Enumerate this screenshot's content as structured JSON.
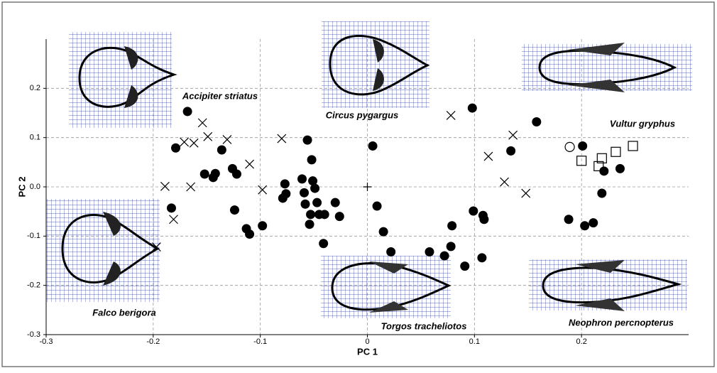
{
  "chart_data": {
    "type": "scatter",
    "x_label": "PC 1",
    "y_label": "PC 2",
    "xlim": [
      -0.3,
      0.3
    ],
    "ylim": [
      -0.3,
      0.3
    ],
    "xticks": [
      -0.3,
      -0.2,
      -0.1,
      0,
      0.1,
      0.2
    ],
    "yticks": [
      -0.3,
      -0.2,
      -0.1,
      {
        "value": 0,
        "label": "0.0"
      },
      0.1,
      0.2
    ],
    "grid": true,
    "annotations": [
      "Accipiter striatus",
      "Circus pygargus",
      "Vultur gryphus",
      "Falco berigora",
      "Torgos tracheliotos",
      "Neophron percnopterus"
    ],
    "series": [
      {
        "marker": "filled-circle",
        "color": "#000000",
        "x": [
          -0.168,
          -0.179,
          -0.152,
          -0.142,
          -0.144,
          -0.183,
          -0.136,
          -0.126,
          -0.122,
          -0.124,
          -0.113,
          -0.11,
          -0.098,
          -0.077,
          -0.079,
          -0.076,
          -0.061,
          -0.059,
          -0.058,
          -0.045,
          -0.04,
          -0.053,
          -0.051,
          -0.049,
          -0.047,
          -0.056,
          -0.052,
          -0.054,
          -0.041,
          -0.03,
          -0.026,
          0.005,
          0.009,
          0.015,
          0.022,
          0.098,
          0.058,
          0.072,
          0.079,
          0.078,
          0.091,
          0.099,
          0.108,
          0.109,
          0.107,
          0.134,
          0.158,
          0.188,
          0.201,
          0.203,
          0.211,
          0.219,
          0.221,
          0.236
        ],
        "values": [
          0.153,
          0.079,
          0.026,
          0.027,
          0.019,
          -0.043,
          0.075,
          0.037,
          0.026,
          -0.047,
          -0.085,
          -0.096,
          -0.079,
          0.006,
          -0.023,
          -0.014,
          0.016,
          -0.012,
          -0.035,
          -0.056,
          -0.056,
          -0.056,
          0.012,
          -0.003,
          -0.032,
          0.095,
          0.055,
          -0.076,
          -0.115,
          -0.032,
          -0.06,
          0.083,
          -0.039,
          -0.091,
          -0.132,
          0.16,
          -0.132,
          -0.14,
          -0.079,
          -0.121,
          -0.161,
          -0.049,
          -0.058,
          -0.066,
          -0.144,
          0.073,
          0.132,
          -0.066,
          0.083,
          -0.079,
          -0.073,
          -0.013,
          0.032,
          0.037
        ]
      },
      {
        "marker": "cross",
        "color": "#000000",
        "x": [
          -0.154,
          -0.149,
          -0.171,
          -0.162,
          -0.131,
          -0.189,
          -0.165,
          -0.181,
          -0.11,
          -0.098,
          -0.08,
          0.078,
          0.113,
          0.136,
          0.128,
          0.148,
          -0.197
        ],
        "values": [
          0.13,
          0.102,
          0.091,
          0.089,
          0.096,
          0.001,
          0.0,
          -0.066,
          0.046,
          -0.006,
          0.098,
          0.145,
          0.062,
          0.105,
          0.01,
          -0.013,
          -0.122
        ]
      },
      {
        "marker": "open-circle",
        "color": "#000000",
        "x": [
          0.189
        ],
        "values": [
          0.081
        ]
      },
      {
        "marker": "open-square",
        "color": "#000000",
        "x": [
          0.2,
          0.216,
          0.219,
          0.232,
          0.248
        ],
        "values": [
          0.053,
          0.042,
          0.058,
          0.071,
          0.083
        ]
      },
      {
        "marker": "plus",
        "color": "#000000",
        "x": [
          0
        ],
        "values": [
          0
        ]
      }
    ]
  }
}
